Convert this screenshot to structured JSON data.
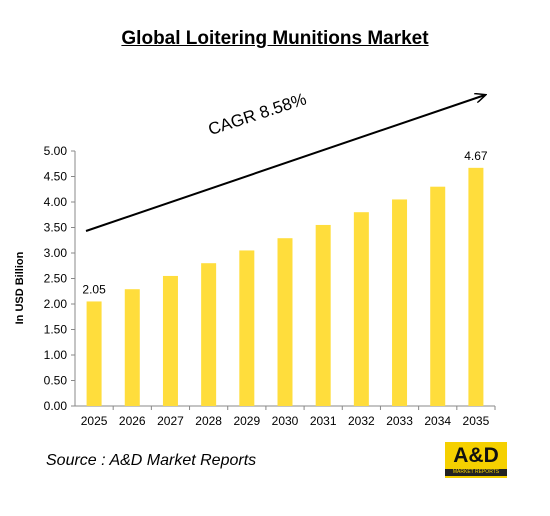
{
  "chart_data": {
    "type": "bar",
    "title": "Global Loitering Munitions Market",
    "ylabel": "In USD Billion",
    "categories": [
      "2025",
      "2026",
      "2027",
      "2028",
      "2029",
      "2030",
      "2031",
      "2032",
      "2033",
      "2034",
      "2035"
    ],
    "values": [
      2.05,
      2.29,
      2.55,
      2.8,
      3.05,
      3.29,
      3.55,
      3.8,
      4.05,
      4.3,
      4.67
    ],
    "ylim": [
      0,
      5
    ],
    "yticks": [
      "0.00",
      "0.50",
      "1.00",
      "1.50",
      "2.00",
      "2.50",
      "3.00",
      "3.50",
      "4.00",
      "4.50",
      "5.00"
    ],
    "data_labels": {
      "first": "2.05",
      "last": "4.67"
    },
    "annotation": "CAGR 8.58%",
    "bar_color": "#ffdd3c",
    "grid": false,
    "legend": "none"
  },
  "source": "Source : A&D Market Reports",
  "logo": {
    "main": "A&D",
    "sub": "MARKET REPORTS"
  }
}
